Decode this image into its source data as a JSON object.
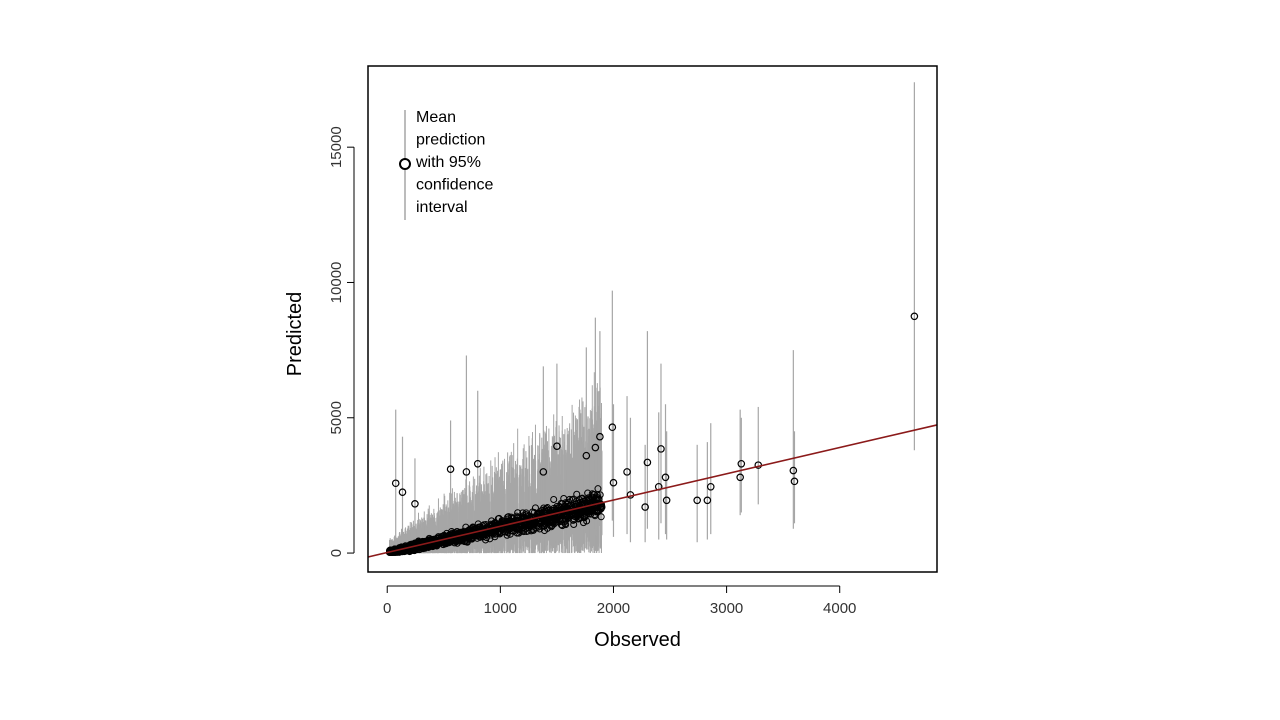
{
  "chart_data": {
    "type": "scatter",
    "xlabel": "Observed",
    "ylabel": "Predicted",
    "xlim": [
      -170,
      4860
    ],
    "ylim": [
      -700,
      18000
    ],
    "xticks": [
      0,
      1000,
      2000,
      3000,
      4000
    ],
    "yticks": [
      0,
      5000,
      10000,
      15000
    ],
    "grid": false,
    "legend": {
      "position": "top-left",
      "lines": [
        "Mean",
        "prediction",
        "with 95%",
        "confidence",
        "interval"
      ]
    },
    "colors": {
      "points": "#000000",
      "interval": "#a6a6a6",
      "fit_line": "#8b1a1a"
    },
    "fit_line": {
      "intercept": 20,
      "slope": 0.97
    },
    "cloud": {
      "n": 1500,
      "x_range": [
        20,
        1900
      ],
      "y_over_x": 0.95
    },
    "points": [
      {
        "x": 75,
        "y": 2580,
        "lo": 300,
        "hi": 5300
      },
      {
        "x": 135,
        "y": 2250,
        "lo": 400,
        "hi": 4300
      },
      {
        "x": 245,
        "y": 1820,
        "lo": 200,
        "hi": 3500
      },
      {
        "x": 560,
        "y": 3100,
        "lo": 700,
        "hi": 4900
      },
      {
        "x": 700,
        "y": 3000,
        "lo": 400,
        "hi": 7300
      },
      {
        "x": 800,
        "y": 3300,
        "lo": 600,
        "hi": 6000
      },
      {
        "x": 1380,
        "y": 3000,
        "lo": 600,
        "hi": 6900
      },
      {
        "x": 1500,
        "y": 3950,
        "lo": 800,
        "hi": 7000
      },
      {
        "x": 1760,
        "y": 3600,
        "lo": 1000,
        "hi": 7600
      },
      {
        "x": 1840,
        "y": 3900,
        "lo": 900,
        "hi": 8700
      },
      {
        "x": 1880,
        "y": 4300,
        "lo": 1000,
        "hi": 8200
      },
      {
        "x": 1990,
        "y": 4650,
        "lo": 1200,
        "hi": 9700
      },
      {
        "x": 2000,
        "y": 2600,
        "lo": 600,
        "hi": 5500
      },
      {
        "x": 2120,
        "y": 3000,
        "lo": 700,
        "hi": 5800
      },
      {
        "x": 2150,
        "y": 2150,
        "lo": 400,
        "hi": 5000
      },
      {
        "x": 2300,
        "y": 3350,
        "lo": 900,
        "hi": 8200
      },
      {
        "x": 2280,
        "y": 1700,
        "lo": 400,
        "hi": 4000
      },
      {
        "x": 2400,
        "y": 2450,
        "lo": 500,
        "hi": 5200
      },
      {
        "x": 2420,
        "y": 3850,
        "lo": 1100,
        "hi": 7000
      },
      {
        "x": 2460,
        "y": 2800,
        "lo": 700,
        "hi": 5500
      },
      {
        "x": 2470,
        "y": 1950,
        "lo": 500,
        "hi": 4500
      },
      {
        "x": 2740,
        "y": 1950,
        "lo": 400,
        "hi": 4000
      },
      {
        "x": 2830,
        "y": 1950,
        "lo": 500,
        "hi": 4100
      },
      {
        "x": 2860,
        "y": 2450,
        "lo": 700,
        "hi": 4800
      },
      {
        "x": 3120,
        "y": 2800,
        "lo": 1400,
        "hi": 5300
      },
      {
        "x": 3130,
        "y": 3300,
        "lo": 1500,
        "hi": 5000
      },
      {
        "x": 3280,
        "y": 3250,
        "lo": 1800,
        "hi": 5400
      },
      {
        "x": 3590,
        "y": 3050,
        "lo": 900,
        "hi": 7500
      },
      {
        "x": 3600,
        "y": 2650,
        "lo": 1100,
        "hi": 4500
      },
      {
        "x": 4660,
        "y": 8750,
        "lo": 3800,
        "hi": 17400
      }
    ]
  }
}
